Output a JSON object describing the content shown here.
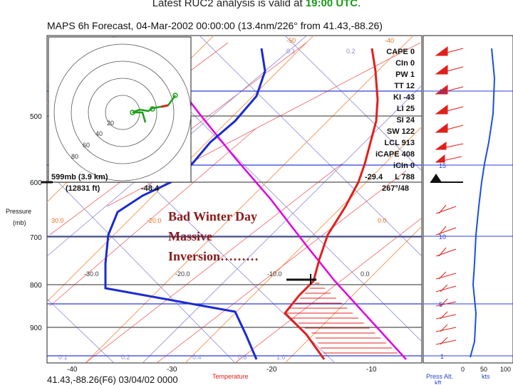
{
  "header": {
    "prefix": "Latest RUC2 analysis is valid at ",
    "time": "19:00 UTC",
    "suffix": "."
  },
  "subtitle": "MAPS 6h Forecast, 04-Mar-2002 00:00:00 (13.4nm/226° from 41.43,-88.26)",
  "footer": "41.43,-88.26(F6) 03/04/02 0000",
  "annotation": [
    "Bad Winter Day",
    "Massive",
    "Inversion………"
  ],
  "pressure_axis": {
    "title": "Pressure",
    "unit": "(mb)",
    "ticks": [
      "500",
      "600",
      "700",
      "800",
      "900"
    ]
  },
  "temperature_axis": {
    "title": "Temperature",
    "ticks": [
      "-40",
      "-30",
      "-20",
      "-10"
    ]
  },
  "isotherm_labels": [
    "-50",
    "-40",
    "30.0",
    "-20.0",
    "-10.0",
    "0.0",
    "-30.0",
    "-20.0",
    "-10.0",
    "0.0"
  ],
  "mixing_ratio_labels": [
    "0.1",
    "0.2",
    "0.1",
    "0.2",
    "0.4",
    "0.6",
    "1.0"
  ],
  "hodograph_rings": [
    "20",
    "40",
    "60",
    "80"
  ],
  "cursor": {
    "line1": "599mb (3.9 km)",
    "line2": "(12831 ft)",
    "temp": "-48.4",
    "dewpoint": "-29.4",
    "wind": "267°/48"
  },
  "indices": [
    {
      "label": "CAPE",
      "value": "0"
    },
    {
      "label": "CIn",
      "value": "0"
    },
    {
      "label": "PW",
      "value": "1"
    },
    {
      "label": "TT",
      "value": "12"
    },
    {
      "label": "KI",
      "value": "-43"
    },
    {
      "label": "LI",
      "value": "25"
    },
    {
      "label": "SI",
      "value": "24"
    },
    {
      "label": "SW",
      "value": "122"
    },
    {
      "label": "LCL",
      "value": "913"
    },
    {
      "label": "iCAPE",
      "value": "408"
    },
    {
      "label": "iCIn",
      "value": "0"
    },
    {
      "label": "L",
      "value": "788"
    }
  ],
  "wind_panel": {
    "height_labels": [
      "15",
      "10",
      "5",
      "1"
    ],
    "x_ticks": [
      "0",
      "50",
      "100"
    ],
    "xlabel_left": "Press Alt.",
    "xlabel_left2": "kft",
    "xlabel_right": "kts",
    "marker": "12"
  },
  "colors": {
    "temperature": "#e0201c",
    "dewpoint": "#1a2bd0",
    "parcel": "#e000e0",
    "isobar": "#2b3fd8",
    "isotherm": "#f4a060",
    "mixing": "#8a8ad8",
    "wind_profile": "#1a50e0"
  },
  "chart_data": {
    "type": "line",
    "title": "MAPS 6h Forecast, 04-Mar-2002 00:00:00 (13.4nm/226° from 41.43,-88.26)",
    "xlabel": "Temperature",
    "ylabel": "Pressure (mb)",
    "series": []
  }
}
